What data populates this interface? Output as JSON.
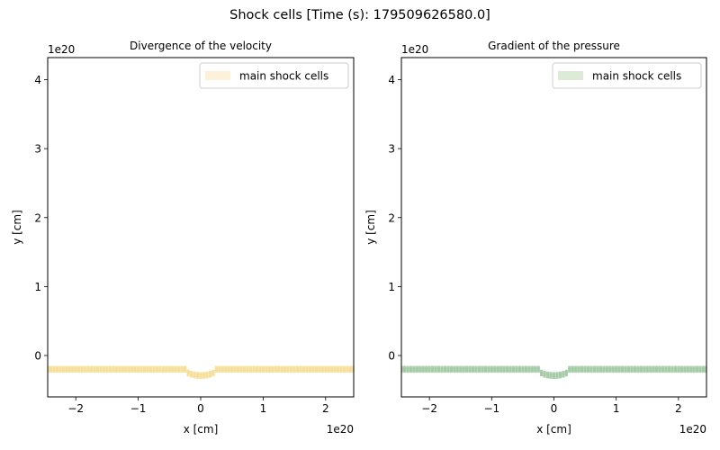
{
  "figure": {
    "title": "Shock cells [Time (s): 179509626580.0]"
  },
  "chart_data": [
    {
      "type": "scatter",
      "title": "Divergence of the velocity",
      "xlabel": "x [cm]",
      "ylabel": "y [cm]",
      "x_multiplier": "1e20",
      "y_multiplier": "1e20",
      "xlim": [
        -2.45,
        2.45
      ],
      "ylim": [
        -0.6,
        4.32
      ],
      "xticks": [
        -2,
        -1,
        0,
        1,
        2
      ],
      "xtick_labels": [
        "−2",
        "−1",
        "0",
        "1",
        "2"
      ],
      "yticks": [
        0,
        1,
        2,
        3,
        4
      ],
      "ytick_labels": [
        "0",
        "1",
        "2",
        "3",
        "4"
      ],
      "grid": false,
      "legend_position": "upper right",
      "series": [
        {
          "name": "main shock cells",
          "color": "#f5dc8f",
          "legend_color": "#fdf1d9",
          "band_center": -0.2,
          "band_halfwidth": 0.035,
          "dip": {
            "x_start": -0.25,
            "x_end": 0.25,
            "depth": 0.09
          }
        }
      ]
    },
    {
      "type": "scatter",
      "title": "Gradient of the pressure",
      "xlabel": "x [cm]",
      "ylabel": "y [cm]",
      "x_multiplier": "1e20",
      "y_multiplier": "1e20",
      "xlim": [
        -2.45,
        2.45
      ],
      "ylim": [
        -0.6,
        4.32
      ],
      "xticks": [
        -2,
        -1,
        0,
        1,
        2
      ],
      "xtick_labels": [
        "−2",
        "−1",
        "0",
        "1",
        "2"
      ],
      "yticks": [
        0,
        1,
        2,
        3,
        4
      ],
      "ytick_labels": [
        "0",
        "1",
        "2",
        "3",
        "4"
      ],
      "grid": false,
      "legend_position": "upper right",
      "series": [
        {
          "name": "main shock cells",
          "color": "#9cc79f",
          "legend_color": "#dcebd6",
          "band_center": -0.2,
          "band_halfwidth": 0.035,
          "dip": {
            "x_start": -0.25,
            "x_end": 0.25,
            "depth": 0.09
          }
        }
      ]
    }
  ]
}
